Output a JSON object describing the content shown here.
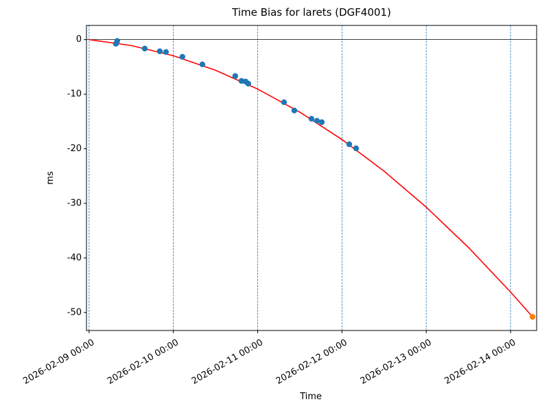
{
  "chart_data": {
    "type": "line",
    "title": "Time Bias for larets (DGF4001)",
    "x_label": "Time",
    "y_label": "ms",
    "xlim": [
      "2026-02-08 23:15",
      "2026-02-14 07:26"
    ],
    "ylim": [
      -53.3,
      2.6
    ],
    "xticks": [
      "2026-02-09 00:00",
      "2026-02-10 00:00",
      "2026-02-11 00:00",
      "2026-02-12 00:00",
      "2026-02-13 00:00",
      "2026-02-14 00:00"
    ],
    "yticks": [
      0,
      -10,
      -20,
      -30,
      -40,
      -50
    ],
    "day_lines": true,
    "zero_line": 0,
    "series": [
      {
        "kind": "line",
        "color": "#ff0000",
        "x": [
          "2026-02-09 00:00",
          "2026-02-09 12:00",
          "2026-02-10 00:00",
          "2026-02-10 12:00",
          "2026-02-11 00:00",
          "2026-02-11 12:00",
          "2026-02-12 00:00",
          "2026-02-12 12:00",
          "2026-02-13 00:00",
          "2026-02-13 12:00",
          "2026-02-14 00:00",
          "2026-02-14 06:16"
        ],
        "values": [
          0,
          -1.08,
          -2.95,
          -5.61,
          -9.06,
          -13.29,
          -18.31,
          -24.11,
          -30.7,
          -38.08,
          -46.25,
          -50.8
        ]
      },
      {
        "kind": "scatter",
        "color": "#1f77b4",
        "x": [
          "2026-02-09 07:37",
          "2026-02-09 08:01",
          "2026-02-09 15:50",
          "2026-02-09 20:08",
          "2026-02-09 21:53",
          "2026-02-10 02:34",
          "2026-02-10 08:15",
          "2026-02-10 17:37",
          "2026-02-10 19:23",
          "2026-02-10 20:34",
          "2026-02-10 21:20",
          "2026-02-11 07:30",
          "2026-02-11 10:26",
          "2026-02-11 15:19",
          "2026-02-11 16:53",
          "2026-02-11 18:15",
          "2026-02-12 02:04",
          "2026-02-12 04:01"
        ],
        "values": [
          -0.76,
          -0.25,
          -1.64,
          -2.14,
          -2.27,
          -3.15,
          -4.54,
          -6.68,
          -7.57,
          -7.69,
          -8.07,
          -11.48,
          -12.99,
          -14.5,
          -14.88,
          -15.13,
          -19.17,
          -19.92
        ]
      },
      {
        "kind": "scatter",
        "color": "#ff7f0e",
        "x": [
          "2026-02-14 06:16"
        ],
        "values": [
          -50.8
        ]
      }
    ]
  }
}
